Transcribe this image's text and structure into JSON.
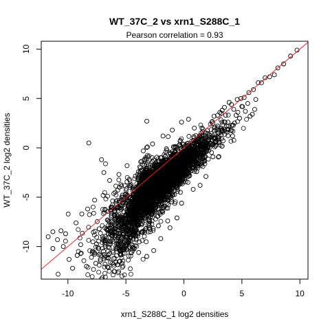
{
  "chart_data": {
    "type": "scatter",
    "title": "WT_37C_2 vs xrn1_S288C_1",
    "subtitle": "Pearson correlation =  0.93",
    "xlabel": "xrn1_S288C_1 log2 densities",
    "ylabel": "WT_37C_2 log2 densities",
    "xlim": [
      -12.3,
      10.7
    ],
    "ylim": [
      -13.3,
      10.8
    ],
    "x_ticks": [
      -10,
      -5,
      0,
      5,
      10
    ],
    "y_ticks": [
      -10,
      -5,
      0,
      5,
      10
    ],
    "x_tick_labels": [
      "-10",
      "-5",
      "0",
      "5",
      "10"
    ],
    "y_tick_labels": [
      "-10",
      "-5",
      "0",
      "5",
      "10"
    ],
    "grid": false,
    "marker": "open-circle",
    "reference_line": {
      "type": "identity",
      "slope": 1,
      "intercept": 0,
      "color": "#e8262b"
    },
    "colors": {
      "points": "#000000",
      "reference_line": "#e8262b",
      "axes": "#000000"
    },
    "points": [
      [
        9.75,
        9.9
      ],
      [
        9.2,
        9.3
      ],
      [
        8.6,
        8.5
      ],
      [
        8.1,
        8.1
      ],
      [
        7.8,
        7.4
      ],
      [
        7.4,
        7.2
      ],
      [
        7.0,
        7.1
      ],
      [
        6.7,
        6.6
      ],
      [
        6.4,
        6.6
      ],
      [
        6.0,
        5.9
      ],
      [
        5.6,
        5.6
      ],
      [
        5.2,
        5.1
      ],
      [
        6.2,
        4.9
      ],
      [
        4.9,
        5.0
      ],
      [
        4.6,
        4.9
      ],
      [
        3.9,
        4.6
      ],
      [
        3.5,
        4.1
      ],
      [
        3.3,
        3.8
      ],
      [
        3.1,
        3.6
      ],
      [
        2.9,
        3.3
      ],
      [
        2.6,
        3.2
      ],
      [
        4.3,
        3.9
      ],
      [
        3.7,
        2.2
      ],
      [
        4.8,
        3.0
      ],
      [
        2.7,
        0.6
      ],
      [
        2.3,
        0.4
      ],
      [
        4.2,
        1.2
      ],
      [
        5.7,
        3.2
      ],
      [
        5.9,
        3.4
      ],
      [
        6.1,
        3.9
      ],
      [
        5.5,
        4.5
      ],
      [
        5.0,
        4.2
      ],
      [
        4.1,
        4.4
      ],
      [
        3.6,
        3.3
      ],
      [
        3.0,
        1.5
      ],
      [
        2.0,
        -0.2
      ],
      [
        1.6,
        -1.1
      ],
      [
        1.1,
        -2.4
      ],
      [
        0.5,
        -1.8
      ],
      [
        0.1,
        -2.1
      ],
      [
        -0.7,
        -3.0
      ],
      [
        -0.2,
        -5.6
      ],
      [
        -0.6,
        -7.1
      ],
      [
        -1.4,
        -7.4
      ],
      [
        -2.2,
        -7.9
      ],
      [
        -3.3,
        -8.2
      ],
      [
        -4.6,
        -9.1
      ],
      [
        -4.8,
        -9.6
      ],
      [
        -5.2,
        -10.3
      ],
      [
        -5.7,
        -9.1
      ],
      [
        -4.2,
        -9.9
      ],
      [
        -6.1,
        -10.6
      ],
      [
        -7.2,
        -11.3
      ],
      [
        -7.6,
        -11.7
      ],
      [
        -8.4,
        -12.0
      ],
      [
        -9.6,
        -12.2
      ],
      [
        -9.9,
        -11.3
      ],
      [
        -10.4,
        -10.0
      ],
      [
        -10.9,
        -9.3
      ],
      [
        -11.3,
        -8.5
      ],
      [
        -11.7,
        -9.0
      ],
      [
        -11.3,
        -10.2
      ],
      [
        -10.6,
        -8.4
      ],
      [
        -10.2,
        -8.7
      ],
      [
        -9.3,
        -7.6
      ],
      [
        -8.8,
        -6.7
      ],
      [
        -8.3,
        -6.2
      ],
      [
        -7.7,
        -5.3
      ],
      [
        -8.2,
        0.5
      ],
      [
        -7.1,
        -1.2
      ],
      [
        -6.9,
        -2.5
      ],
      [
        -6.4,
        -3.3
      ],
      [
        -5.6,
        -2.7
      ],
      [
        -4.9,
        -1.8
      ],
      [
        -3.5,
        -0.3
      ],
      [
        -2.7,
        0.4
      ],
      [
        -1.8,
        1.2
      ],
      [
        -1.0,
        1.8
      ],
      [
        -0.2,
        2.6
      ],
      [
        0.4,
        2.9
      ],
      [
        0.9,
        2.0
      ],
      [
        -3.2,
        2.7
      ],
      [
        -2.3,
        -1.7
      ],
      [
        -1.7,
        -0.7
      ],
      [
        -0.9,
        0.1
      ],
      [
        -7.3,
        -8.2
      ],
      [
        -6.6,
        -7.3
      ],
      [
        -6.0,
        -6.8
      ],
      [
        -5.2,
        -8.7
      ],
      [
        -3.9,
        -10.6
      ],
      [
        -3.2,
        -11.0
      ],
      [
        -2.6,
        -10.4
      ],
      [
        -6.8,
        -9.4
      ],
      [
        -7.9,
        -10.6
      ],
      [
        -8.9,
        -9.8
      ],
      [
        -9.2,
        -10.9
      ],
      [
        -3.7,
        -7.7
      ],
      [
        -2.9,
        -8.5
      ],
      [
        1.4,
        -3.8
      ],
      [
        1.9,
        -2.9
      ],
      [
        2.5,
        -0.9
      ],
      [
        3.3,
        1.7
      ],
      [
        3.8,
        2.6
      ],
      [
        4.5,
        3.3
      ],
      [
        5.3,
        3.7
      ],
      [
        0.8,
        -4.2
      ],
      [
        -0.3,
        -4.5
      ],
      [
        -1.1,
        -5.0
      ],
      [
        -1.9,
        -5.6
      ],
      [
        -2.5,
        -6.3
      ],
      [
        -3.1,
        -6.5
      ],
      [
        -4.1,
        -7.0
      ],
      [
        -4.7,
        -6.8
      ],
      [
        -5.4,
        -7.6
      ],
      [
        -5.9,
        -8.1
      ],
      [
        -6.5,
        -8.7
      ],
      [
        -7.0,
        -9.0
      ],
      [
        -2.0,
        -9.2
      ],
      [
        -1.2,
        -8.1
      ]
    ]
  }
}
